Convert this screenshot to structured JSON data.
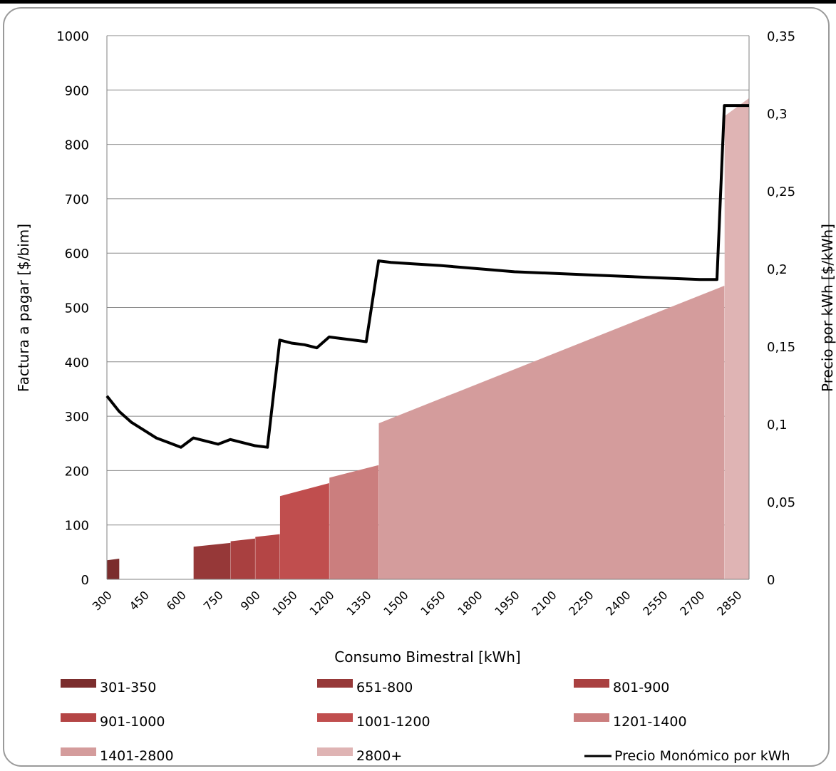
{
  "chart_data": {
    "type": "area",
    "xlabel": "Consumo Bimestral [kWh]",
    "ylabel": "Factura a pagar [$/bim]",
    "y2label": "Precio por kWh [$/kWh]",
    "xlim": [
      300,
      2900
    ],
    "ylim": [
      0,
      1000
    ],
    "y2lim": [
      0,
      0.35
    ],
    "grid": true,
    "legend_position": "bottom",
    "x_ticks": [
      "300",
      "450",
      "600",
      "750",
      "900",
      "1050",
      "1200",
      "1350",
      "1500",
      "1650",
      "1800",
      "1950",
      "2100",
      "2250",
      "2400",
      "2550",
      "2700",
      "2850"
    ],
    "y_ticks": [
      "0",
      "100",
      "200",
      "300",
      "400",
      "500",
      "600",
      "700",
      "800",
      "900",
      "1000"
    ],
    "y2_ticks": [
      "0",
      "0,05",
      "0,1",
      "0,15",
      "0,2",
      "0,25",
      "0,3",
      "0,35"
    ],
    "series": [
      {
        "name": "301-350",
        "color": "#7b2d2d",
        "points": [
          [
            301,
            35
          ],
          [
            350,
            38
          ]
        ]
      },
      {
        "name": "651-800",
        "color": "#963838",
        "points": [
          [
            651,
            60
          ],
          [
            800,
            67
          ]
        ]
      },
      {
        "name": "801-900",
        "color": "#a94040",
        "points": [
          [
            801,
            70
          ],
          [
            900,
            75
          ]
        ]
      },
      {
        "name": "901-1000",
        "color": "#b44545",
        "points": [
          [
            901,
            78
          ],
          [
            1000,
            83
          ]
        ]
      },
      {
        "name": "1001-1200",
        "color": "#c04e4e",
        "points": [
          [
            1001,
            153
          ],
          [
            1200,
            177
          ]
        ]
      },
      {
        "name": "1201-1400",
        "color": "#cb7e7e",
        "points": [
          [
            1201,
            187
          ],
          [
            1400,
            210
          ]
        ]
      },
      {
        "name": "1401-2800",
        "color": "#d49c9c",
        "points": [
          [
            1401,
            287
          ],
          [
            2800,
            540
          ]
        ]
      },
      {
        "name": "2800+",
        "color": "#dfb4b4",
        "points": [
          [
            2801,
            852
          ],
          [
            2900,
            885
          ]
        ]
      }
    ],
    "line_series": {
      "name": "Precio Monómico por kWh",
      "color": "#000000",
      "axis": "right",
      "points": [
        [
          300,
          0.118
        ],
        [
          350,
          0.108
        ],
        [
          400,
          0.101
        ],
        [
          450,
          0.096
        ],
        [
          500,
          0.091
        ],
        [
          550,
          0.088
        ],
        [
          600,
          0.085
        ],
        [
          650,
          0.091
        ],
        [
          700,
          0.089
        ],
        [
          750,
          0.087
        ],
        [
          800,
          0.09
        ],
        [
          850,
          0.088
        ],
        [
          900,
          0.086
        ],
        [
          950,
          0.085
        ],
        [
          1000,
          0.154
        ],
        [
          1050,
          0.152
        ],
        [
          1100,
          0.151
        ],
        [
          1150,
          0.149
        ],
        [
          1200,
          0.156
        ],
        [
          1250,
          0.155
        ],
        [
          1300,
          0.154
        ],
        [
          1350,
          0.153
        ],
        [
          1400,
          0.205
        ],
        [
          1450,
          0.204
        ],
        [
          1550,
          0.203
        ],
        [
          1650,
          0.202
        ],
        [
          1800,
          0.2
        ],
        [
          1950,
          0.198
        ],
        [
          2100,
          0.197
        ],
        [
          2250,
          0.196
        ],
        [
          2400,
          0.195
        ],
        [
          2550,
          0.194
        ],
        [
          2700,
          0.193
        ],
        [
          2770,
          0.193
        ],
        [
          2800,
          0.305
        ],
        [
          2900,
          0.305
        ]
      ]
    }
  }
}
